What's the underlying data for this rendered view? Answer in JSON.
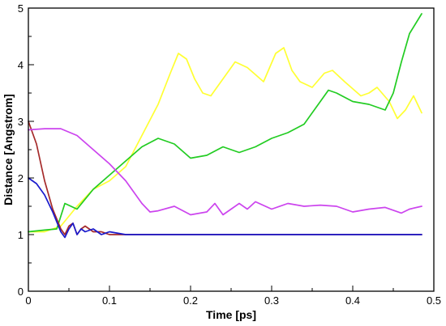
{
  "chart_data": {
    "type": "line",
    "title": "",
    "xlabel": "Time [ps]",
    "ylabel": "Distance [Angstrom]",
    "xlim": [
      0,
      0.5
    ],
    "ylim": [
      0,
      5
    ],
    "xticks": [
      "0",
      "0.1",
      "0.2",
      "0.3",
      "0.4",
      "0.5"
    ],
    "yticks": [
      "0",
      "1",
      "2",
      "3",
      "4",
      "5"
    ],
    "grid": false,
    "legend": "none",
    "series": [
      {
        "color": "#ffff33",
        "x": [
          0.0,
          0.02,
          0.04,
          0.06,
          0.08,
          0.1,
          0.12,
          0.14,
          0.16,
          0.175,
          0.185,
          0.195,
          0.205,
          0.215,
          0.225,
          0.24,
          0.255,
          0.27,
          0.29,
          0.305,
          0.315,
          0.325,
          0.335,
          0.35,
          0.365,
          0.375,
          0.39,
          0.41,
          0.42,
          0.43,
          0.445,
          0.455,
          0.465,
          0.475,
          0.485
        ],
        "y": [
          1.05,
          1.05,
          1.15,
          1.5,
          1.8,
          1.95,
          2.2,
          2.75,
          3.3,
          3.85,
          4.2,
          4.1,
          3.75,
          3.5,
          3.45,
          3.75,
          4.05,
          3.95,
          3.7,
          4.2,
          4.3,
          3.9,
          3.7,
          3.6,
          3.85,
          3.9,
          3.7,
          3.45,
          3.5,
          3.6,
          3.35,
          3.05,
          3.2,
          3.45,
          3.15
        ]
      },
      {
        "color": "#22cc22",
        "x": [
          0.0,
          0.02,
          0.035,
          0.045,
          0.06,
          0.08,
          0.1,
          0.12,
          0.14,
          0.16,
          0.18,
          0.2,
          0.22,
          0.24,
          0.26,
          0.28,
          0.3,
          0.32,
          0.34,
          0.36,
          0.37,
          0.38,
          0.4,
          0.42,
          0.43,
          0.44,
          0.45,
          0.46,
          0.47,
          0.485
        ],
        "y": [
          1.05,
          1.08,
          1.1,
          1.55,
          1.45,
          1.8,
          2.05,
          2.3,
          2.55,
          2.7,
          2.6,
          2.35,
          2.4,
          2.55,
          2.45,
          2.55,
          2.7,
          2.8,
          2.95,
          3.35,
          3.55,
          3.5,
          3.35,
          3.3,
          3.25,
          3.2,
          3.5,
          4.05,
          4.55,
          4.9
        ]
      },
      {
        "color": "#a52a2a",
        "x": [
          0.0,
          0.01,
          0.02,
          0.03,
          0.04,
          0.045,
          0.05,
          0.055,
          0.06,
          0.065,
          0.07,
          0.08,
          0.09,
          0.1,
          0.12,
          0.15,
          0.2,
          0.25,
          0.3,
          0.35,
          0.4,
          0.45,
          0.485
        ],
        "y": [
          3.0,
          2.6,
          1.95,
          1.45,
          1.1,
          1.0,
          1.15,
          1.2,
          1.0,
          1.1,
          1.15,
          1.05,
          1.05,
          1.0,
          1.0,
          1.0,
          1.0,
          1.0,
          1.0,
          1.0,
          1.0,
          1.0,
          1.0
        ]
      },
      {
        "color": "#1a1acc",
        "x": [
          0.0,
          0.01,
          0.02,
          0.03,
          0.04,
          0.045,
          0.05,
          0.055,
          0.06,
          0.065,
          0.07,
          0.08,
          0.09,
          0.1,
          0.12,
          0.15,
          0.2,
          0.25,
          0.3,
          0.35,
          0.4,
          0.45,
          0.485
        ],
        "y": [
          2.0,
          1.9,
          1.7,
          1.4,
          1.05,
          0.95,
          1.1,
          1.2,
          1.0,
          1.1,
          1.05,
          1.1,
          1.0,
          1.05,
          1.0,
          1.0,
          1.0,
          1.0,
          1.0,
          1.0,
          1.0,
          1.0,
          1.0
        ]
      },
      {
        "color": "#cc44ee",
        "x": [
          0.0,
          0.02,
          0.04,
          0.06,
          0.08,
          0.1,
          0.12,
          0.14,
          0.15,
          0.16,
          0.18,
          0.2,
          0.22,
          0.23,
          0.24,
          0.25,
          0.26,
          0.27,
          0.28,
          0.3,
          0.32,
          0.34,
          0.36,
          0.38,
          0.4,
          0.42,
          0.44,
          0.46,
          0.47,
          0.485
        ],
        "y": [
          2.85,
          2.87,
          2.87,
          2.75,
          2.5,
          2.25,
          1.95,
          1.55,
          1.4,
          1.42,
          1.5,
          1.35,
          1.4,
          1.55,
          1.35,
          1.45,
          1.55,
          1.45,
          1.58,
          1.45,
          1.55,
          1.5,
          1.52,
          1.5,
          1.4,
          1.45,
          1.48,
          1.38,
          1.45,
          1.5
        ]
      }
    ]
  }
}
